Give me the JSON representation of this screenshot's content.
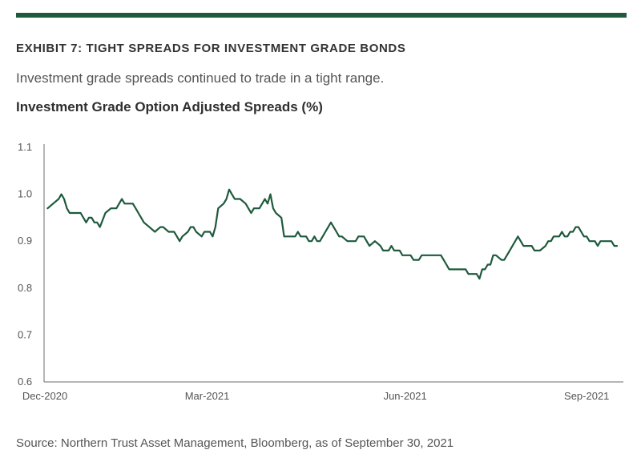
{
  "header": {
    "exhibit_title": "EXHIBIT 7: TIGHT SPREADS FOR INVESTMENT GRADE BONDS",
    "subtitle": "Investment grade spreads continued to trade in a tight range.",
    "chart_title": "Investment Grade Option Adjusted Spreads (%)"
  },
  "source": "Source: Northern Trust Asset Management, Bloomberg, as of September 30, 2021",
  "colors": {
    "accent": "#1e5a3c",
    "line": "#1e5a3c",
    "axis": "#6b6b6b"
  },
  "chart_data": {
    "type": "line",
    "title": "Investment Grade Option Adjusted Spreads (%)",
    "xlabel": "",
    "ylabel": "",
    "ylim": [
      0.6,
      1.1
    ],
    "yticks": [
      "1.1",
      "1.0",
      "0.9",
      "0.8",
      "0.7",
      "0.6"
    ],
    "xlim": [
      0,
      208
    ],
    "xticks": [
      {
        "x": 0,
        "label": "Dec-2020"
      },
      {
        "x": 59,
        "label": "Mar-2021"
      },
      {
        "x": 131,
        "label": "Jun-2021"
      },
      {
        "x": 197,
        "label": "Sep-2021"
      }
    ],
    "grid": false,
    "legend": "none",
    "series": [
      {
        "name": "",
        "color": "#1e5a3c",
        "points": [
          [
            1,
            0.97
          ],
          [
            3,
            0.98
          ],
          [
            5,
            0.99
          ],
          [
            6,
            1.0
          ],
          [
            7,
            0.99
          ],
          [
            8,
            0.97
          ],
          [
            9,
            0.96
          ],
          [
            11,
            0.96
          ],
          [
            13,
            0.96
          ],
          [
            14,
            0.95
          ],
          [
            15,
            0.94
          ],
          [
            16,
            0.95
          ],
          [
            17,
            0.95
          ],
          [
            18,
            0.94
          ],
          [
            19,
            0.94
          ],
          [
            20,
            0.93
          ],
          [
            22,
            0.96
          ],
          [
            24,
            0.97
          ],
          [
            26,
            0.97
          ],
          [
            27,
            0.98
          ],
          [
            28,
            0.99
          ],
          [
            29,
            0.98
          ],
          [
            31,
            0.98
          ],
          [
            32,
            0.98
          ],
          [
            33,
            0.97
          ],
          [
            34,
            0.96
          ],
          [
            36,
            0.94
          ],
          [
            38,
            0.93
          ],
          [
            40,
            0.92
          ],
          [
            42,
            0.93
          ],
          [
            43,
            0.93
          ],
          [
            45,
            0.92
          ],
          [
            47,
            0.92
          ],
          [
            48,
            0.91
          ],
          [
            49,
            0.9
          ],
          [
            50,
            0.91
          ],
          [
            52,
            0.92
          ],
          [
            53,
            0.93
          ],
          [
            54,
            0.93
          ],
          [
            55,
            0.92
          ],
          [
            57,
            0.91
          ],
          [
            58,
            0.92
          ],
          [
            60,
            0.92
          ],
          [
            61,
            0.91
          ],
          [
            62,
            0.93
          ],
          [
            63,
            0.97
          ],
          [
            65,
            0.98
          ],
          [
            66,
            0.99
          ],
          [
            67,
            1.01
          ],
          [
            68,
            1.0
          ],
          [
            69,
            0.99
          ],
          [
            71,
            0.99
          ],
          [
            73,
            0.98
          ],
          [
            74,
            0.97
          ],
          [
            75,
            0.96
          ],
          [
            76,
            0.97
          ],
          [
            78,
            0.97
          ],
          [
            79,
            0.98
          ],
          [
            80,
            0.99
          ],
          [
            81,
            0.98
          ],
          [
            82,
            1.0
          ],
          [
            83,
            0.97
          ],
          [
            84,
            0.96
          ],
          [
            86,
            0.95
          ],
          [
            87,
            0.91
          ],
          [
            89,
            0.91
          ],
          [
            91,
            0.91
          ],
          [
            92,
            0.92
          ],
          [
            93,
            0.91
          ],
          [
            95,
            0.91
          ],
          [
            96,
            0.9
          ],
          [
            97,
            0.9
          ],
          [
            98,
            0.91
          ],
          [
            99,
            0.9
          ],
          [
            100,
            0.9
          ],
          [
            102,
            0.92
          ],
          [
            103,
            0.93
          ],
          [
            104,
            0.94
          ],
          [
            105,
            0.93
          ],
          [
            106,
            0.92
          ],
          [
            107,
            0.91
          ],
          [
            108,
            0.91
          ],
          [
            110,
            0.9
          ],
          [
            112,
            0.9
          ],
          [
            113,
            0.9
          ],
          [
            114,
            0.91
          ],
          [
            115,
            0.91
          ],
          [
            116,
            0.91
          ],
          [
            117,
            0.9
          ],
          [
            118,
            0.89
          ],
          [
            120,
            0.9
          ],
          [
            122,
            0.89
          ],
          [
            123,
            0.88
          ],
          [
            125,
            0.88
          ],
          [
            126,
            0.89
          ],
          [
            127,
            0.88
          ],
          [
            129,
            0.88
          ],
          [
            130,
            0.87
          ],
          [
            132,
            0.87
          ],
          [
            133,
            0.87
          ],
          [
            134,
            0.86
          ],
          [
            136,
            0.86
          ],
          [
            137,
            0.87
          ],
          [
            138,
            0.87
          ],
          [
            140,
            0.87
          ],
          [
            142,
            0.87
          ],
          [
            144,
            0.87
          ],
          [
            145,
            0.86
          ],
          [
            146,
            0.85
          ],
          [
            147,
            0.84
          ],
          [
            148,
            0.84
          ],
          [
            149,
            0.84
          ],
          [
            151,
            0.84
          ],
          [
            152,
            0.84
          ],
          [
            153,
            0.84
          ],
          [
            154,
            0.83
          ],
          [
            156,
            0.83
          ],
          [
            157,
            0.83
          ],
          [
            158,
            0.82
          ],
          [
            159,
            0.84
          ],
          [
            160,
            0.84
          ],
          [
            161,
            0.85
          ],
          [
            162,
            0.85
          ],
          [
            163,
            0.87
          ],
          [
            164,
            0.87
          ],
          [
            166,
            0.86
          ],
          [
            167,
            0.86
          ],
          [
            168,
            0.87
          ],
          [
            170,
            0.89
          ],
          [
            172,
            0.91
          ],
          [
            173,
            0.9
          ],
          [
            174,
            0.89
          ],
          [
            175,
            0.89
          ],
          [
            177,
            0.89
          ],
          [
            178,
            0.88
          ],
          [
            179,
            0.88
          ],
          [
            180,
            0.88
          ],
          [
            182,
            0.89
          ],
          [
            183,
            0.9
          ],
          [
            184,
            0.9
          ],
          [
            185,
            0.91
          ],
          [
            187,
            0.91
          ],
          [
            188,
            0.92
          ],
          [
            189,
            0.91
          ],
          [
            190,
            0.91
          ],
          [
            191,
            0.92
          ],
          [
            192,
            0.92
          ],
          [
            193,
            0.93
          ],
          [
            194,
            0.93
          ],
          [
            195,
            0.92
          ],
          [
            196,
            0.91
          ],
          [
            197,
            0.91
          ],
          [
            198,
            0.9
          ],
          [
            199,
            0.9
          ],
          [
            200,
            0.9
          ],
          [
            201,
            0.89
          ],
          [
            202,
            0.9
          ],
          [
            203,
            0.9
          ],
          [
            204,
            0.9
          ],
          [
            205,
            0.9
          ],
          [
            206,
            0.9
          ],
          [
            207,
            0.89
          ],
          [
            208,
            0.89
          ]
        ]
      }
    ]
  }
}
